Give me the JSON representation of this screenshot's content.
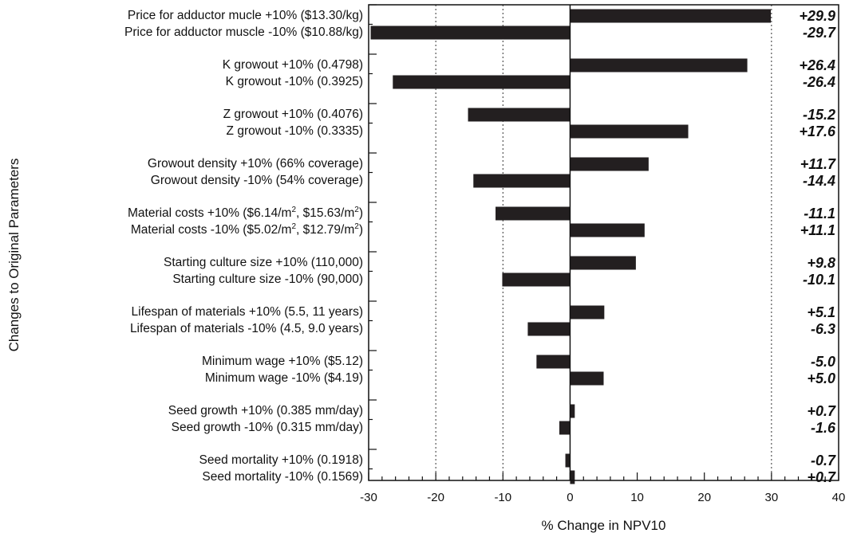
{
  "chart_data": {
    "type": "bar",
    "orientation": "horizontal",
    "title": "",
    "xlabel": "% Change in NPV10",
    "ylabel": "Changes to Original Parameters",
    "xlim": [
      -30,
      40
    ],
    "xticks": [
      "-30",
      "-20",
      "-10",
      "0",
      "10",
      "20",
      "30",
      "40"
    ],
    "grid": "vertical dotted at -20, -10, 30",
    "categories": [
      "Price for adductor mucle  +10% ($13.30/kg)",
      "Price for adductor muscle -10% ($10.88/kg)",
      "K growout +10% (0.4798)",
      "K growout -10% (0.3925)",
      "Z growout +10% (0.4076)",
      "Z growout -10% (0.3335)",
      "Growout density +10% (66% coverage)",
      "Growout density -10% (54% coverage)",
      "Material costs +10% ($6.14/m², $15.63/m²)",
      "Material costs -10% ($5.02/m², $12.79/m²)",
      "Starting culture size +10% (110,000)",
      "Starting culture size -10% (90,000)",
      "Lifespan of materials +10% (5.5, 11 years)",
      "Lifespan of materials -10% (4.5, 9.0 years)",
      "Minimum wage +10% ($5.12)",
      "Minimum wage -10% ($4.19)",
      "Seed growth +10% (0.385 mm/day)",
      "Seed growth -10% (0.315 mm/day)",
      "Seed mortality +10% (0.1918)",
      "Seed mortality -10% (0.1569)"
    ],
    "values": [
      29.9,
      -29.7,
      26.4,
      -26.4,
      -15.2,
      17.6,
      11.7,
      -14.4,
      -11.1,
      11.1,
      9.8,
      -10.1,
      5.1,
      -6.3,
      -5.0,
      5.0,
      0.7,
      -1.6,
      -0.7,
      0.7
    ],
    "value_labels": [
      "+29.9",
      "-29.7",
      "+26.4",
      "-26.4",
      "-15.2",
      "+17.6",
      "+11.7",
      "-14.4",
      "-11.1",
      "+11.1",
      "+9.8",
      "-10.1",
      "+5.1",
      "-6.3",
      "-5.0",
      "+5.0",
      "+0.7",
      "-1.6",
      "-0.7",
      "+0.7"
    ],
    "bar_color": "#231f20"
  }
}
